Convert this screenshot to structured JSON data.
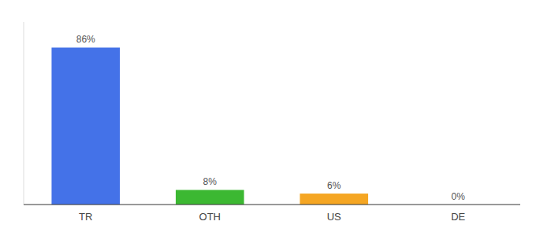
{
  "chart_data": {
    "type": "bar",
    "categories": [
      "TR",
      "OTH",
      "US",
      "DE"
    ],
    "values": [
      86,
      8,
      6,
      0
    ],
    "value_labels": [
      "86%",
      "8%",
      "6%",
      "0%"
    ],
    "colors": [
      "#4472e8",
      "#3cb832",
      "#f5a623",
      "#4472e8"
    ],
    "ylim": [
      0,
      100
    ],
    "data_labels": true,
    "tick_labels": "x",
    "grid": false
  }
}
